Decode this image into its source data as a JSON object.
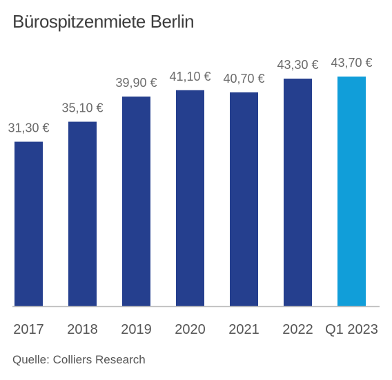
{
  "chart_data": {
    "type": "bar",
    "title": "Bürospitzenmiete Berlin",
    "source": "Quelle: Colliers Research",
    "categories": [
      "2017",
      "2018",
      "2019",
      "2020",
      "2021",
      "2022",
      "Q1 2023"
    ],
    "values": [
      31.3,
      35.1,
      39.9,
      41.1,
      40.7,
      43.3,
      43.7
    ],
    "value_labels": [
      "31,30 €",
      "35,10 €",
      "39,90 €",
      "41,10 €",
      "40,70 €",
      "43,30 €",
      "43,70 €"
    ],
    "ylim": [
      0,
      43.7
    ],
    "grid": false,
    "colors": {
      "bar": "#253f8e",
      "highlight": "#119ed9",
      "axis": "#bdbdbd"
    },
    "highlight_index": 6
  }
}
